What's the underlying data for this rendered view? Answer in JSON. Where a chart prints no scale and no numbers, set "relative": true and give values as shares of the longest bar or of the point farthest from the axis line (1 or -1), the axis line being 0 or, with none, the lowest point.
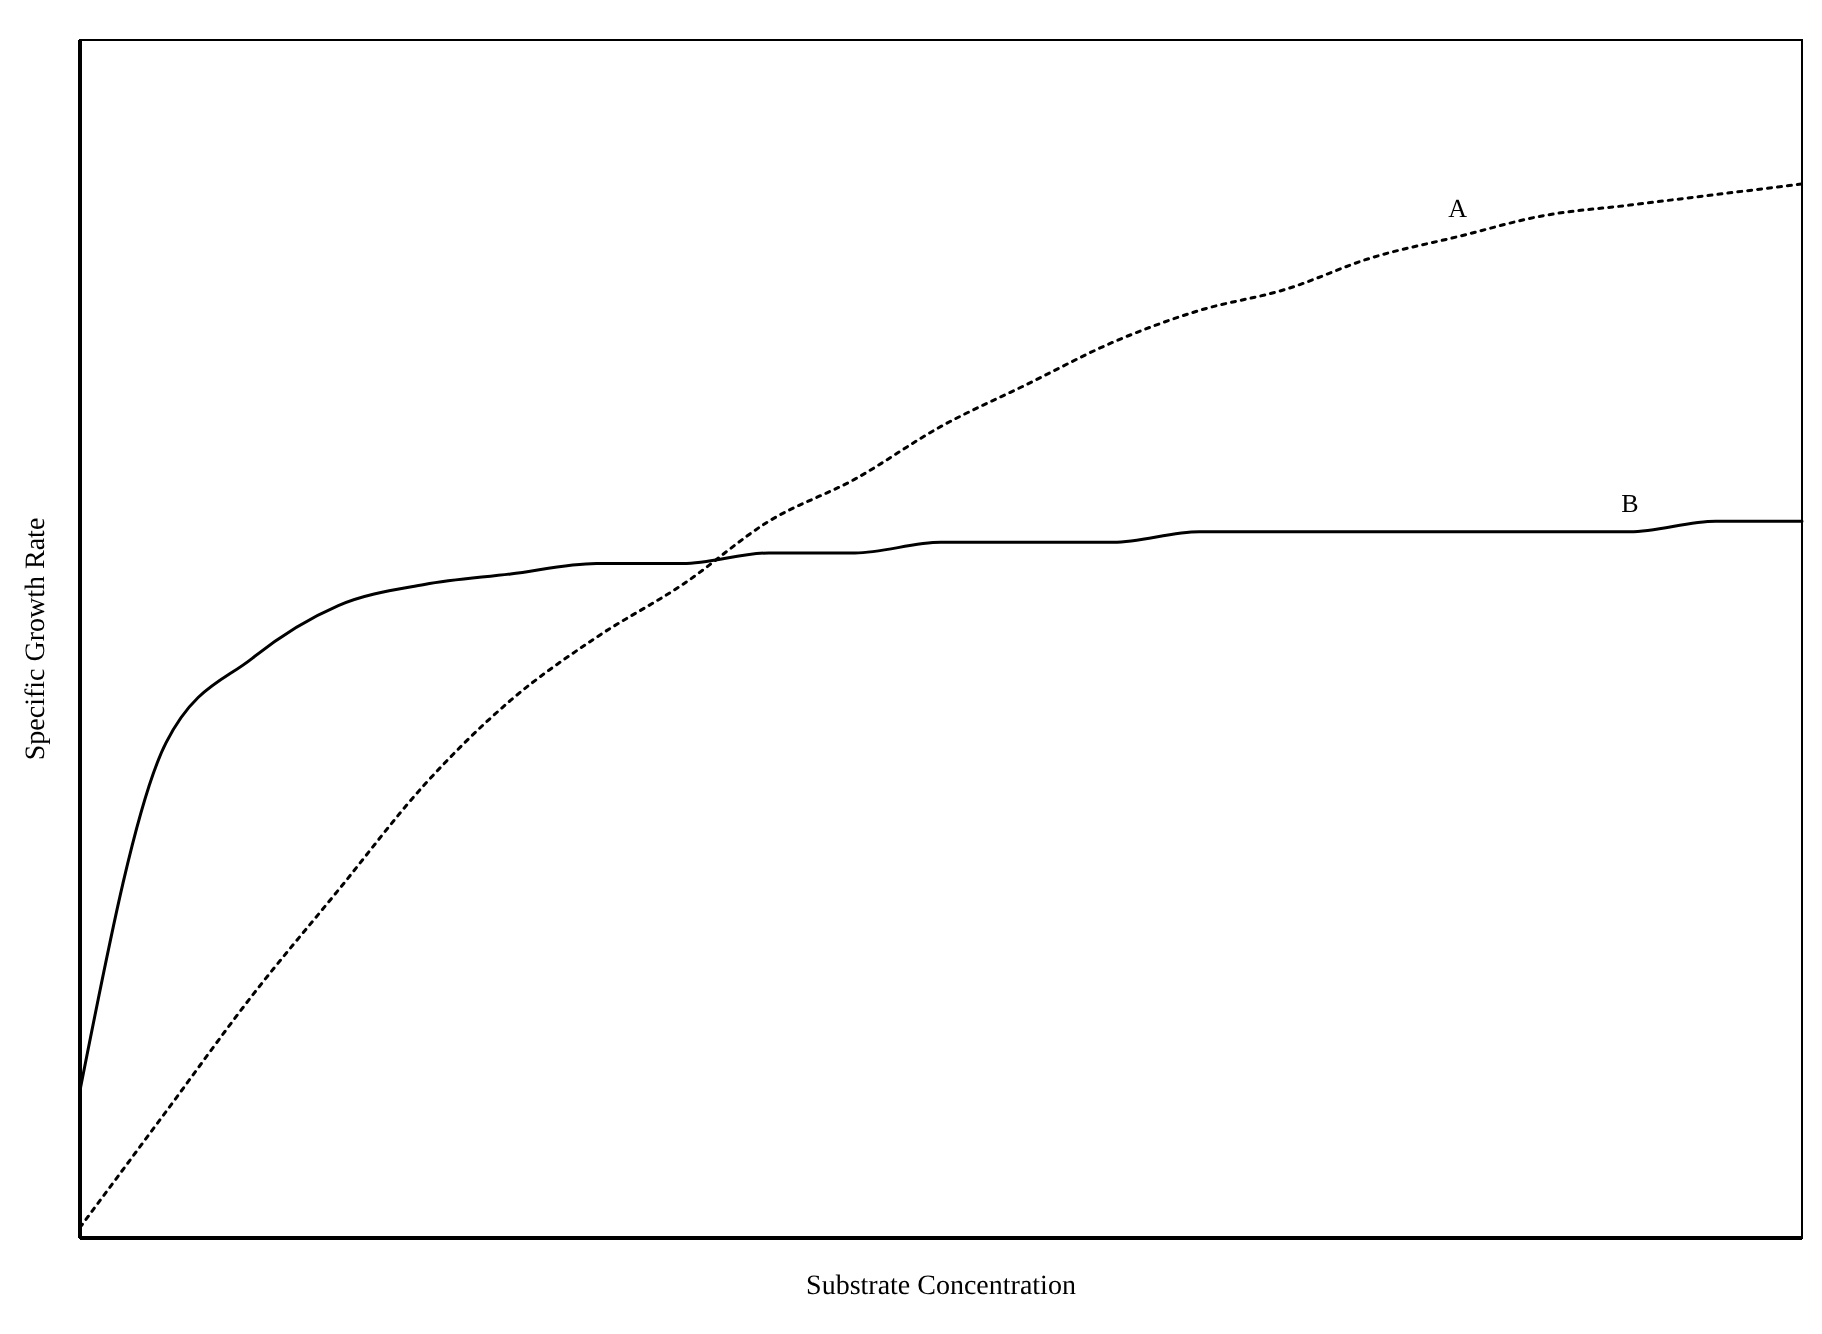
{
  "chart_data": {
    "type": "line",
    "relative": true,
    "xlabel": "Substrate Concentration",
    "ylabel": "Specific Growth Rate",
    "marker": "none",
    "categories": [
      null,
      null,
      null,
      null,
      null,
      null,
      null,
      null,
      null,
      null,
      null,
      null,
      null,
      null,
      null,
      null,
      null,
      null,
      null,
      null,
      null
    ],
    "series": [
      {
        "name": "A",
        "color": "#000000",
        "line_style": "dotted",
        "values": [
          0.01,
          0.12,
          0.23,
          0.33,
          0.43,
          0.51,
          0.57,
          0.62,
          0.68,
          0.72,
          0.77,
          0.81,
          0.85,
          0.88,
          0.9,
          0.93,
          0.95,
          0.97,
          0.98,
          0.99,
          1.0
        ]
      },
      {
        "name": "B",
        "color": "#000000",
        "line_style": "solid",
        "values": [
          0.14,
          0.47,
          0.55,
          0.6,
          0.62,
          0.63,
          0.64,
          0.64,
          0.65,
          0.65,
          0.66,
          0.66,
          0.66,
          0.67,
          0.67,
          0.67,
          0.67,
          0.67,
          0.67,
          0.68,
          0.68
        ]
      }
    ]
  }
}
